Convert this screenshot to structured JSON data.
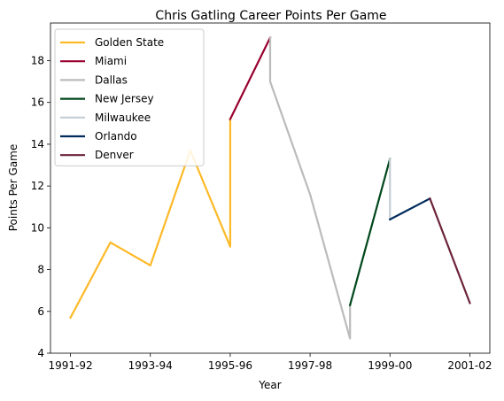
{
  "chart_data": {
    "type": "line",
    "title": "Chris Gatling Career Points Per Game",
    "xlabel": "Year",
    "ylabel": "Points Per Game",
    "x_tick_labels": [
      "1991-92",
      "1993-94",
      "1995-96",
      "1997-98",
      "1999-00",
      "2001-02"
    ],
    "x_ticks": [
      0,
      2,
      4,
      6,
      8,
      10
    ],
    "xlim": [
      -0.5,
      10.5
    ],
    "y_ticks": [
      4,
      6,
      8,
      10,
      12,
      14,
      16,
      18
    ],
    "ylim": [
      4,
      19.8
    ],
    "legend_position": "upper-left",
    "series": [
      {
        "name": "Golden State",
        "color": "#FDB927",
        "points": [
          [
            0,
            5.7
          ],
          [
            1,
            9.3
          ],
          [
            2,
            8.2
          ],
          [
            3,
            13.7
          ],
          [
            4,
            9.1
          ],
          [
            4,
            15.2
          ]
        ]
      },
      {
        "name": "Miami",
        "color": "#98002E",
        "points": [
          [
            4,
            15.2
          ],
          [
            5,
            19.1
          ]
        ]
      },
      {
        "name": "Dallas",
        "color": "#BBBBBB",
        "points": [
          [
            5,
            19.1
          ],
          [
            5,
            17.0
          ],
          [
            6,
            11.6
          ],
          [
            7,
            4.7
          ],
          [
            7,
            6.3
          ]
        ]
      },
      {
        "name": "New Jersey",
        "color": "#00471B",
        "points": [
          [
            7,
            6.3
          ],
          [
            8,
            13.3
          ]
        ]
      },
      {
        "name": "Milwaukee",
        "color": "#C4CED4",
        "points": [
          [
            8,
            13.3
          ],
          [
            8,
            10.4
          ]
        ]
      },
      {
        "name": "Orlando",
        "color": "#002B5C",
        "points": [
          [
            8,
            10.4
          ],
          [
            9,
            11.4
          ]
        ]
      },
      {
        "name": "Denver",
        "color": "#6B2338",
        "points": [
          [
            9,
            11.4
          ],
          [
            10,
            6.4
          ]
        ]
      }
    ]
  }
}
